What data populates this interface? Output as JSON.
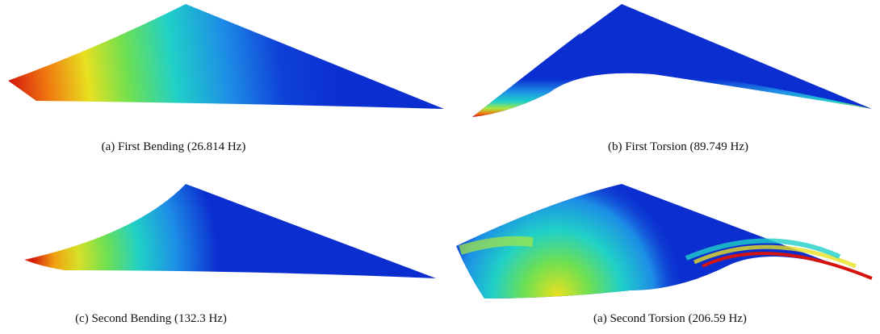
{
  "panels": [
    {
      "caption": "(a) First Bending (26.814 Hz)"
    },
    {
      "caption": "(b) First Torsion (89.749 Hz)"
    },
    {
      "caption": "(c) Second Bending (132.3 Hz)"
    },
    {
      "caption": "(a) Second Torsion (206.59 Hz)"
    }
  ]
}
